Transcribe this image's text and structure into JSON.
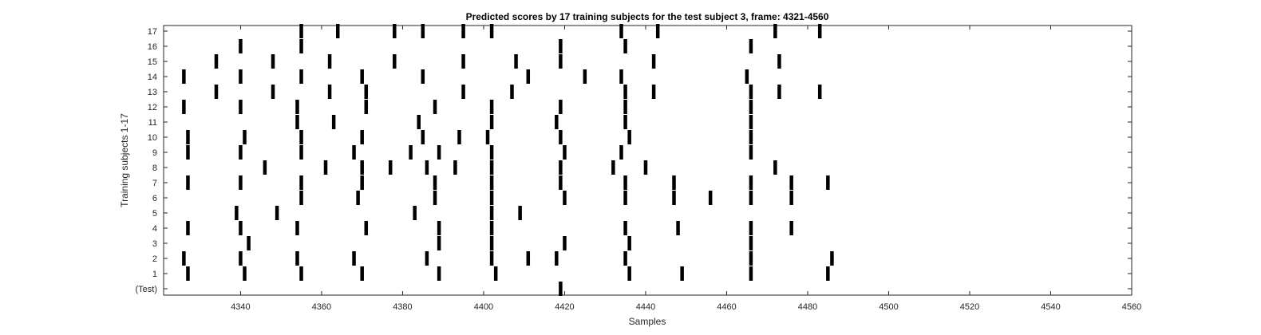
{
  "chart_data": {
    "type": "scatter",
    "title": "Predicted scores by 17 training subjects for the test subject 3, frame: 4321-4560",
    "xlabel": "Samples",
    "ylabel": "Training subjects 1-17",
    "xlim": [
      4321,
      4560
    ],
    "x_ticks": [
      4340,
      4360,
      4380,
      4400,
      4420,
      4440,
      4460,
      4480,
      4500,
      4520,
      4540,
      4560
    ],
    "y_tick_labels": [
      "(Test)",
      "1",
      "2",
      "3",
      "4",
      "5",
      "6",
      "7",
      "8",
      "9",
      "10",
      "11",
      "12",
      "13",
      "14",
      "15",
      "16",
      "17"
    ],
    "mark_color": "#000000",
    "grid": false,
    "rows": [
      {
        "label": "(Test)",
        "x": [
          4419
        ]
      },
      {
        "label": "1",
        "x": [
          4327,
          4341,
          4355,
          4370,
          4389,
          4403,
          4436,
          4449,
          4466,
          4485
        ]
      },
      {
        "label": "2",
        "x": [
          4326,
          4340,
          4354,
          4368,
          4386,
          4402,
          4411,
          4418,
          4435,
          4466,
          4486
        ]
      },
      {
        "label": "3",
        "x": [
          4342,
          4389,
          4402,
          4420,
          4436,
          4466
        ]
      },
      {
        "label": "4",
        "x": [
          4327,
          4340,
          4354,
          4371,
          4389,
          4402,
          4435,
          4448,
          4466,
          4476
        ]
      },
      {
        "label": "5",
        "x": [
          4339,
          4349,
          4383,
          4402,
          4409
        ]
      },
      {
        "label": "6",
        "x": [
          4355,
          4369,
          4388,
          4402,
          4420,
          4435,
          4447,
          4456,
          4466,
          4476
        ]
      },
      {
        "label": "7",
        "x": [
          4327,
          4340,
          4355,
          4370,
          4388,
          4402,
          4419,
          4435,
          4447,
          4466,
          4476,
          4485
        ]
      },
      {
        "label": "8",
        "x": [
          4346,
          4361,
          4370,
          4377,
          4386,
          4393,
          4402,
          4419,
          4432,
          4440,
          4472
        ]
      },
      {
        "label": "9",
        "x": [
          4327,
          4340,
          4355,
          4368,
          4382,
          4389,
          4402,
          4420,
          4434,
          4466
        ]
      },
      {
        "label": "10",
        "x": [
          4327,
          4341,
          4355,
          4370,
          4385,
          4394,
          4401,
          4419,
          4436,
          4466
        ]
      },
      {
        "label": "11",
        "x": [
          4354,
          4363,
          4384,
          4402,
          4418,
          4435,
          4466
        ]
      },
      {
        "label": "12",
        "x": [
          4326,
          4340,
          4354,
          4371,
          4388,
          4402,
          4419,
          4435,
          4466
        ]
      },
      {
        "label": "13",
        "x": [
          4334,
          4348,
          4362,
          4371,
          4395,
          4407,
          4435,
          4442,
          4466,
          4473,
          4483
        ]
      },
      {
        "label": "14",
        "x": [
          4326,
          4340,
          4355,
          4370,
          4385,
          4411,
          4425,
          4434,
          4465
        ]
      },
      {
        "label": "15",
        "x": [
          4334,
          4348,
          4362,
          4378,
          4395,
          4408,
          4419,
          4442,
          4473
        ]
      },
      {
        "label": "16",
        "x": [
          4340,
          4355,
          4419,
          4435,
          4466
        ]
      },
      {
        "label": "17",
        "x": [
          4355,
          4364,
          4378,
          4385,
          4395,
          4402,
          4434,
          4443,
          4472,
          4483
        ]
      }
    ]
  }
}
